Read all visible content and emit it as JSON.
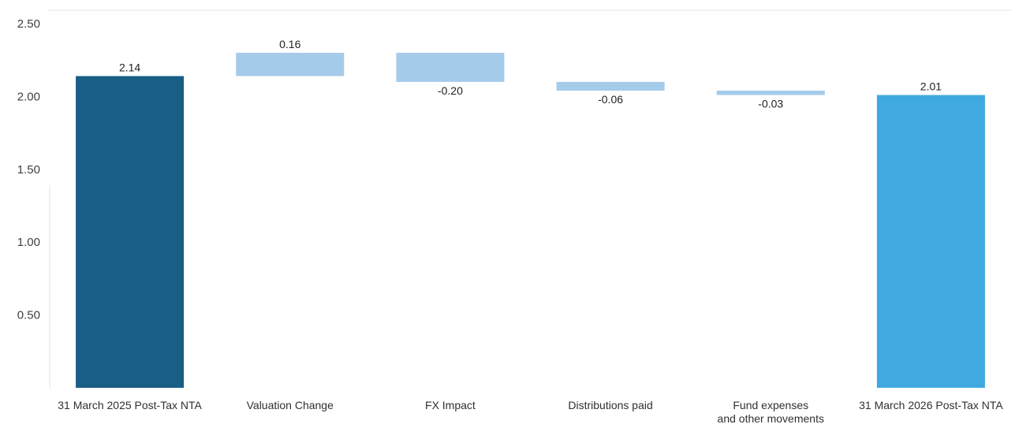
{
  "chart_data": {
    "type": "bar",
    "subtype": "waterfall",
    "title": "",
    "xlabel": "",
    "ylabel": "",
    "ylim": [
      0,
      2.5
    ],
    "yticks": [
      "2.50",
      "2.00",
      "1.50",
      "1.00",
      "0.50"
    ],
    "grid": false,
    "legend": "none",
    "categories": [
      [
        "31 March 2025 Post-Tax NTA"
      ],
      [
        "Valuation Change"
      ],
      [
        "FX Impact"
      ],
      [
        "Distributions paid"
      ],
      [
        "Fund expenses",
        "and other movements"
      ],
      [
        "31 March 2026 Post-Tax NTA"
      ]
    ],
    "values": [
      2.14,
      0.16,
      -0.2,
      -0.06,
      -0.03,
      2.01
    ],
    "value_labels": [
      "2.14",
      "0.16",
      "-0.20",
      "-0.06",
      "-0.03",
      "2.01"
    ],
    "kinds": [
      "total",
      "delta",
      "delta",
      "delta",
      "delta",
      "total"
    ],
    "colors": {
      "start_total": "#195e85",
      "end_total": "#3fa9e0",
      "delta": "#a5cbea",
      "axis": "#d9d9d9",
      "border": "#e6e6e6"
    }
  }
}
